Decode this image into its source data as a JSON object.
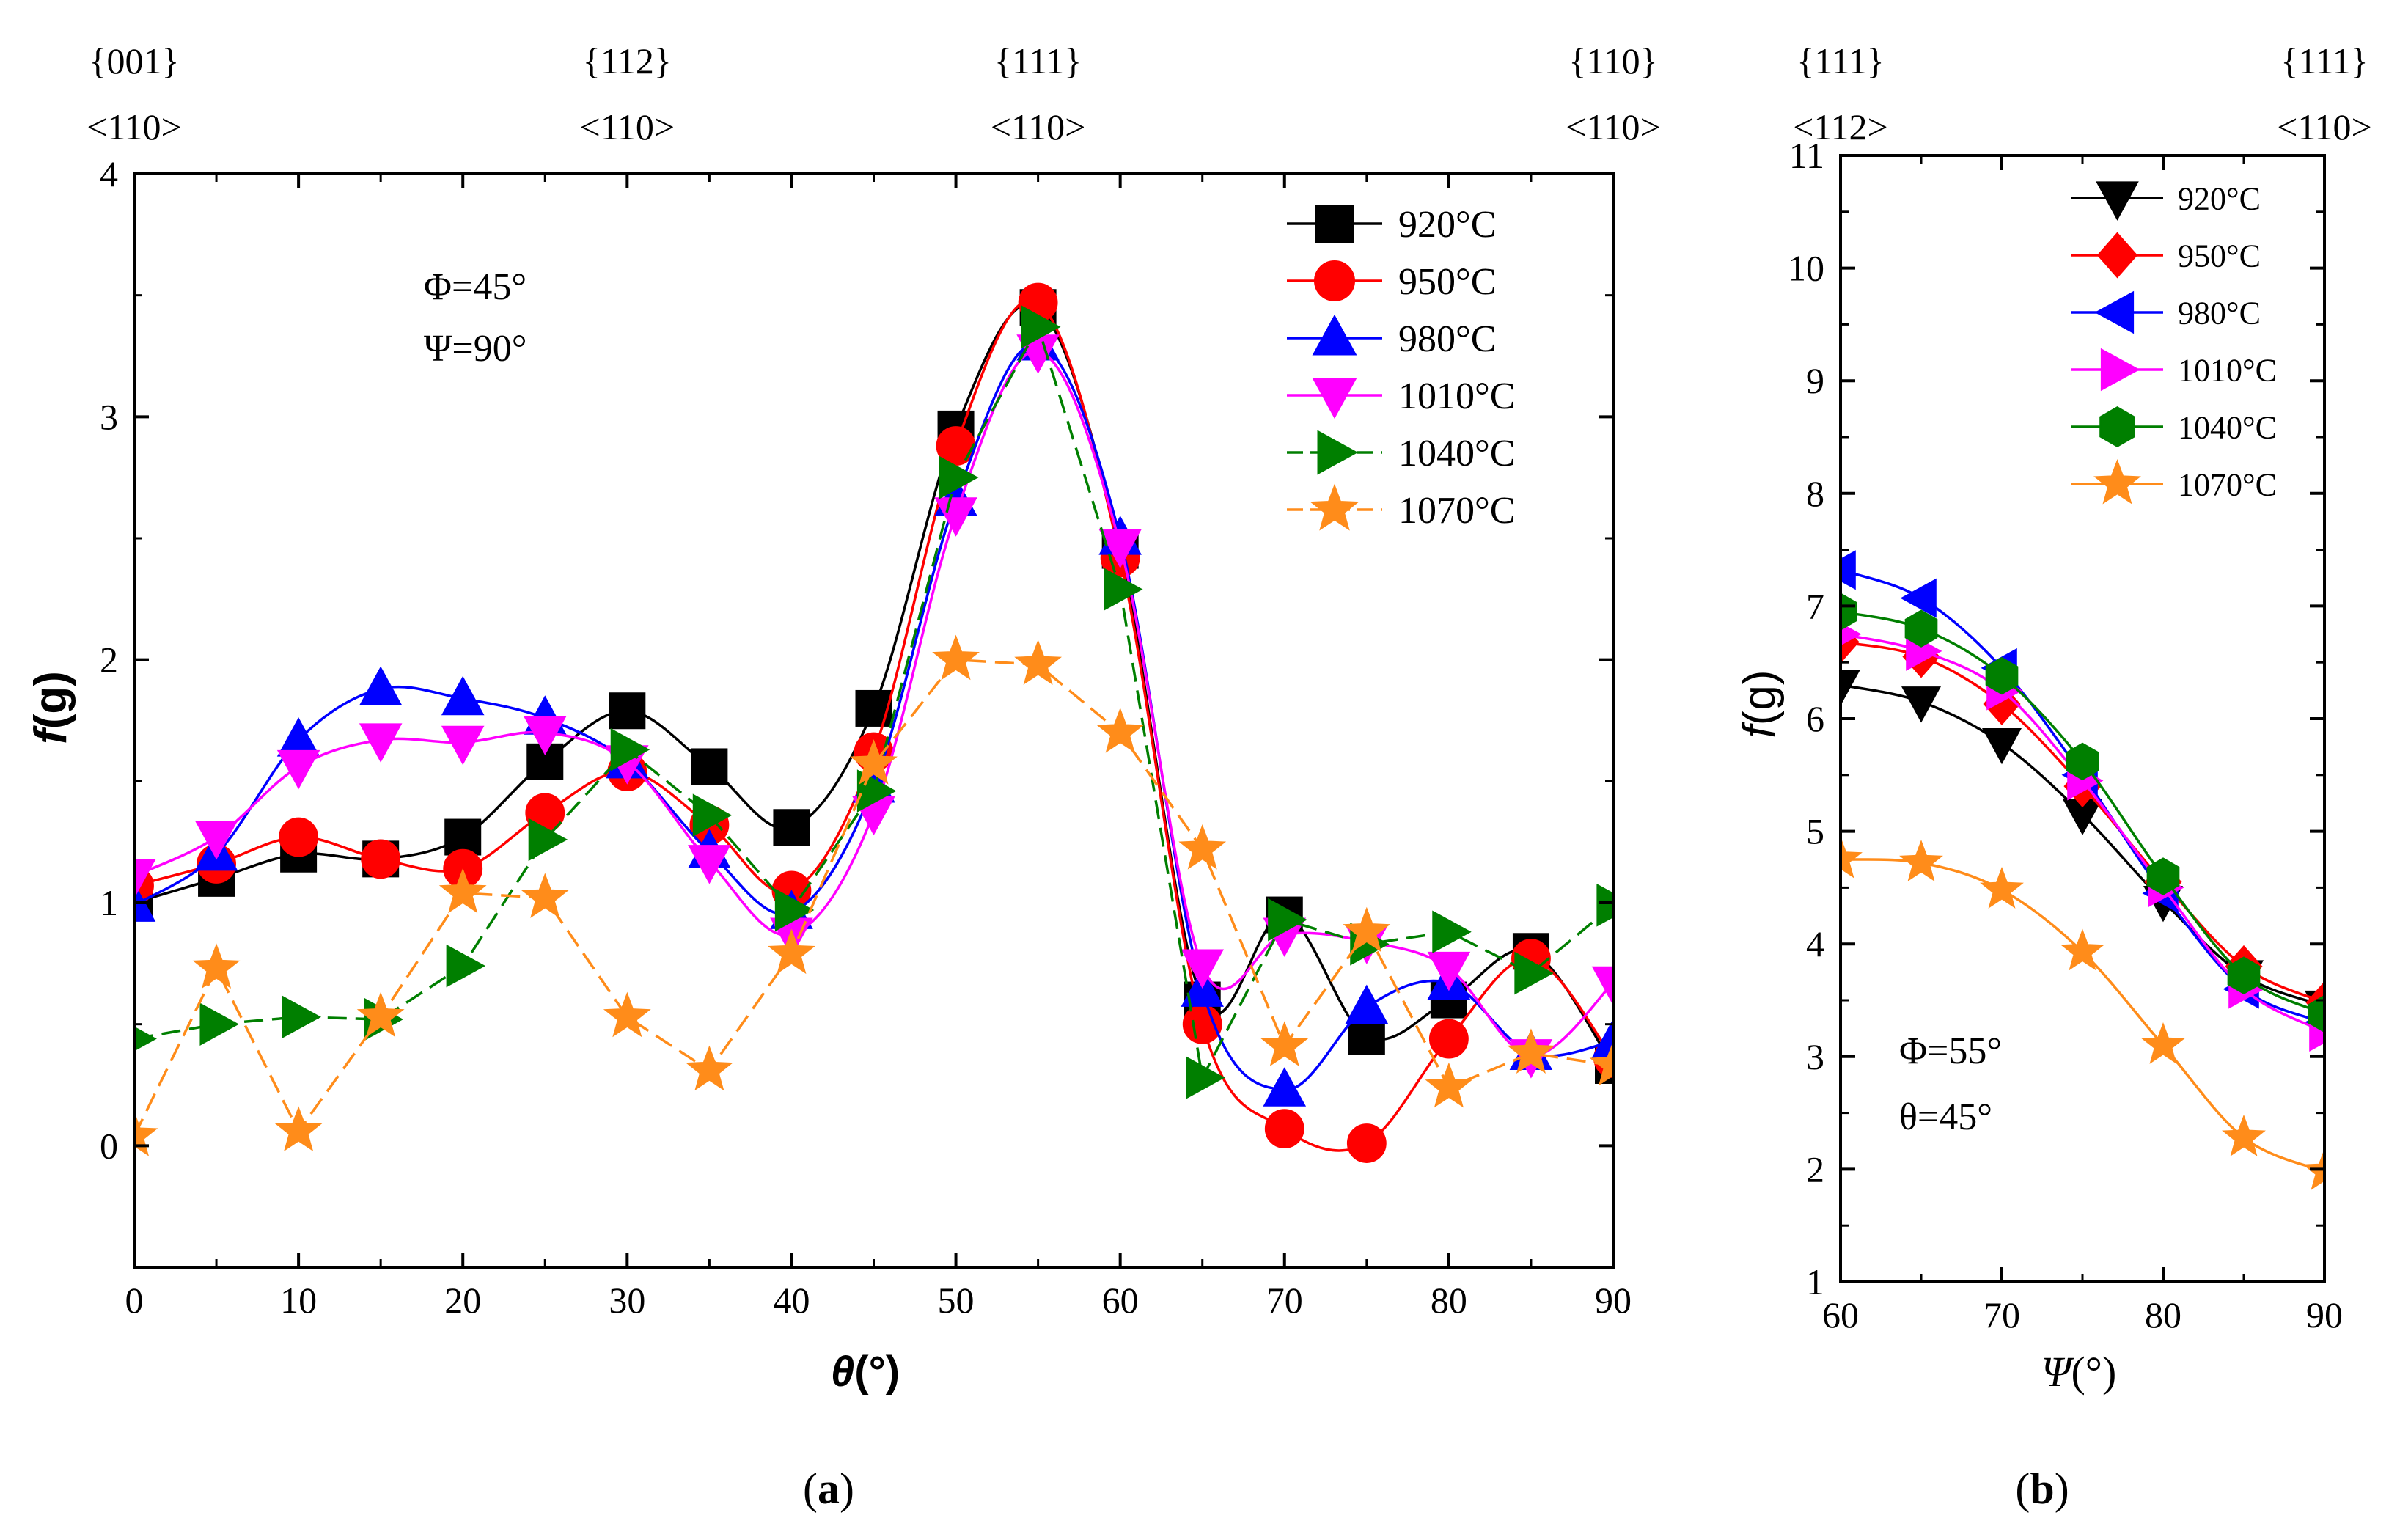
{
  "colors": {
    "920": "#000000",
    "950": "#ff0000",
    "980": "#0000ff",
    "1010": "#ff00ff",
    "1040": "#007f00",
    "1070": "#ff8c1a"
  },
  "chart_data": [
    {
      "id": "a",
      "type": "line",
      "panel_label": "a",
      "xlabel": "θ(°)",
      "ylabel": "f(g)",
      "xlim": [
        0,
        90
      ],
      "ylim": [
        -0.5,
        4
      ],
      "xticks": [
        0,
        10,
        20,
        30,
        40,
        50,
        60,
        70,
        80,
        90
      ],
      "yticks": [
        0,
        1,
        2,
        3,
        4
      ],
      "annotation_lines": [
        "Φ=45°",
        "Ψ=90°"
      ],
      "top_labels": [
        {
          "x": 0,
          "plane": "{001}",
          "direction": "<110>"
        },
        {
          "x": 30,
          "plane": "{112}",
          "direction": "<110>"
        },
        {
          "x": 55,
          "plane": "{111}",
          "direction": "<110>"
        },
        {
          "x": 90,
          "plane": "{110}",
          "direction": "<110>"
        }
      ],
      "x": [
        0,
        5,
        10,
        15,
        20,
        25,
        30,
        35,
        40,
        45,
        50,
        55,
        60,
        65,
        70,
        75,
        80,
        85,
        90
      ],
      "series": [
        {
          "name": "920°C",
          "color_key": "920",
          "marker": "square",
          "dashed": false,
          "values": [
            1.0,
            1.1,
            1.2,
            1.18,
            1.27,
            1.58,
            1.79,
            1.56,
            1.31,
            1.8,
            2.95,
            3.45,
            2.45,
            0.6,
            0.95,
            0.45,
            0.6,
            0.8,
            0.33
          ]
        },
        {
          "name": "950°C",
          "color_key": "950",
          "marker": "circle",
          "dashed": false,
          "values": [
            1.07,
            1.16,
            1.27,
            1.18,
            1.14,
            1.37,
            1.54,
            1.32,
            1.05,
            1.62,
            2.88,
            3.47,
            2.42,
            0.5,
            0.07,
            0.01,
            0.44,
            0.77,
            0.36
          ]
        },
        {
          "name": "980°C",
          "color_key": "980",
          "marker": "triangle-up",
          "dashed": false,
          "values": [
            0.99,
            1.2,
            1.67,
            1.88,
            1.84,
            1.76,
            1.58,
            1.21,
            0.96,
            1.48,
            2.66,
            3.3,
            2.5,
            0.64,
            0.23,
            0.57,
            0.67,
            0.38,
            0.43
          ]
        },
        {
          "name": "1010°C",
          "color_key": "1010",
          "marker": "triangle-down",
          "dashed": false,
          "values": [
            1.11,
            1.27,
            1.56,
            1.67,
            1.66,
            1.7,
            1.58,
            1.17,
            0.87,
            1.37,
            2.6,
            3.27,
            2.47,
            0.74,
            0.87,
            0.84,
            0.73,
            0.37,
            0.67
          ]
        },
        {
          "name": "1040°C",
          "color_key": "1040",
          "marker": "triangle-right",
          "dashed": true,
          "values": [
            0.44,
            0.5,
            0.53,
            0.52,
            0.74,
            1.26,
            1.63,
            1.36,
            0.97,
            1.46,
            2.75,
            3.37,
            2.29,
            0.28,
            0.93,
            0.83,
            0.88,
            0.71,
            0.99
          ]
        },
        {
          "name": "1070°C",
          "color_key": "1070",
          "marker": "star",
          "dashed": true,
          "values": [
            0.04,
            0.73,
            0.06,
            0.53,
            1.04,
            1.02,
            0.53,
            0.31,
            0.79,
            1.57,
            2.0,
            1.98,
            1.7,
            1.22,
            0.41,
            0.88,
            0.24,
            0.38,
            0.33
          ]
        }
      ]
    },
    {
      "id": "b",
      "type": "line",
      "panel_label": "b",
      "xlabel": "Ψ(°)",
      "ylabel": "f(g)",
      "xlim": [
        60,
        90
      ],
      "ylim": [
        1,
        11
      ],
      "xticks": [
        60,
        70,
        80,
        90
      ],
      "yticks": [
        1,
        2,
        3,
        4,
        5,
        6,
        7,
        8,
        9,
        10,
        11
      ],
      "annotation_lines": [
        "Φ=55°",
        "θ=45°"
      ],
      "top_labels": [
        {
          "x": 60,
          "plane": "{111}",
          "direction": "<112>"
        },
        {
          "x": 90,
          "plane": "{111}",
          "direction": "<110>"
        }
      ],
      "x": [
        60,
        65,
        70,
        75,
        80,
        85,
        90
      ],
      "series": [
        {
          "name": "920°C",
          "color_key": "920",
          "marker": "triangle-down",
          "dashed": false,
          "values": [
            6.3,
            6.15,
            5.78,
            5.15,
            4.38,
            3.72,
            3.45
          ]
        },
        {
          "name": "950°C",
          "color_key": "950",
          "marker": "diamond",
          "dashed": false,
          "values": [
            6.68,
            6.55,
            6.13,
            5.4,
            4.55,
            3.8,
            3.48
          ]
        },
        {
          "name": "980°C",
          "color_key": "980",
          "marker": "triangle-left",
          "dashed": false,
          "values": [
            7.32,
            7.07,
            6.45,
            5.5,
            4.45,
            3.6,
            3.3
          ]
        },
        {
          "name": "1010°C",
          "color_key": "1010",
          "marker": "triangle-right",
          "dashed": false,
          "values": [
            6.75,
            6.6,
            6.25,
            5.45,
            4.5,
            3.6,
            3.22
          ]
        },
        {
          "name": "1040°C",
          "color_key": "1040",
          "marker": "hexagon",
          "dashed": false,
          "values": [
            6.95,
            6.8,
            6.38,
            5.62,
            4.6,
            3.72,
            3.38
          ]
        },
        {
          "name": "1070°C",
          "color_key": "1070",
          "marker": "star",
          "dashed": false,
          "values": [
            4.75,
            4.72,
            4.48,
            3.93,
            3.1,
            2.28,
            1.98
          ]
        }
      ]
    }
  ]
}
